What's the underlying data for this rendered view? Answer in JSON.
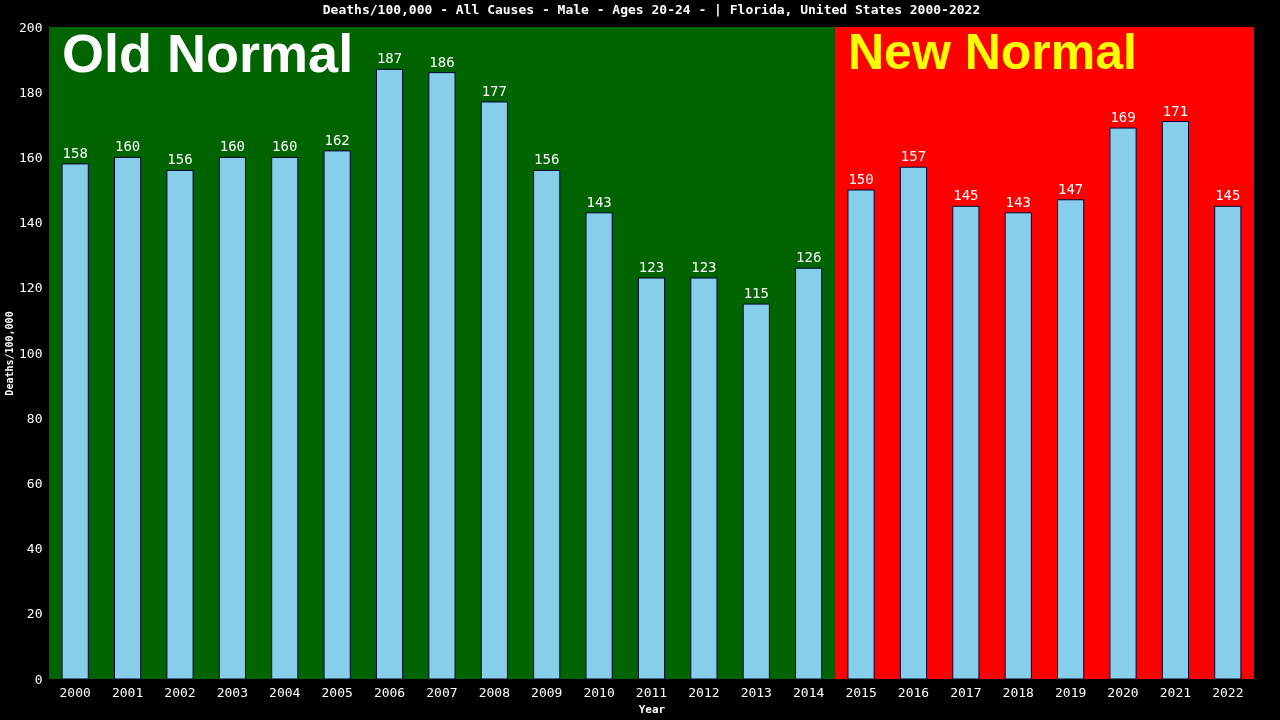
{
  "chart_data": {
    "type": "bar",
    "title": "Deaths/100,000 - All Causes - Male - Ages 20-24 -  | Florida, United States 2000-2022",
    "xlabel": "Year",
    "ylabel": "Deaths/100,000",
    "categories": [
      "2000",
      "2001",
      "2002",
      "2003",
      "2004",
      "2005",
      "2006",
      "2007",
      "2008",
      "2009",
      "2010",
      "2011",
      "2012",
      "2013",
      "2014",
      "2015",
      "2016",
      "2017",
      "2018",
      "2019",
      "2020",
      "2021",
      "2022"
    ],
    "values": [
      158,
      160,
      156,
      160,
      160,
      162,
      187,
      186,
      177,
      156,
      143,
      123,
      123,
      115,
      126,
      150,
      157,
      145,
      143,
      147,
      169,
      171,
      145
    ],
    "color": "#87ceeb",
    "ylim": [
      0,
      200
    ],
    "yticks": [
      0,
      20,
      40,
      60,
      80,
      100,
      120,
      140,
      160,
      180,
      200
    ],
    "grid": false,
    "data_labels": true,
    "bands": [
      {
        "axis": "x",
        "from": "2000",
        "to": "2014",
        "label": "Old Normal",
        "color": "#006400"
      },
      {
        "axis": "x",
        "from": "2015",
        "to": "2022",
        "label": "New Normal",
        "color": "#ff0000"
      }
    ]
  }
}
